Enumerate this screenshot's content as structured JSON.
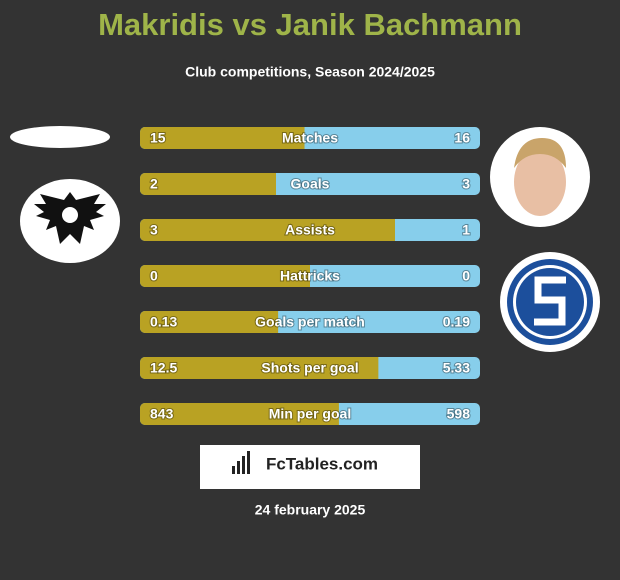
{
  "header": {
    "title": "Makridis vs Janik Bachmann",
    "subtitle": "Club competitions, Season 2024/2025"
  },
  "stats": [
    {
      "label": "Matches",
      "left": 15,
      "right": 16
    },
    {
      "label": "Goals",
      "left": 2,
      "right": 3
    },
    {
      "label": "Assists",
      "left": 3,
      "right": 1
    },
    {
      "label": "Hattricks",
      "left": 0,
      "right": 0
    },
    {
      "label": "Goals per match",
      "left": 0.13,
      "right": 0.19
    },
    {
      "label": "Shots per goal",
      "left": 12.5,
      "right": 5.33
    },
    {
      "label": "Min per goal",
      "left": 843,
      "right": 598
    }
  ],
  "colors": {
    "left": "#b9a223",
    "right": "#87ceeb"
  },
  "brand": "FcTables.com",
  "date": "24 february 2025"
}
